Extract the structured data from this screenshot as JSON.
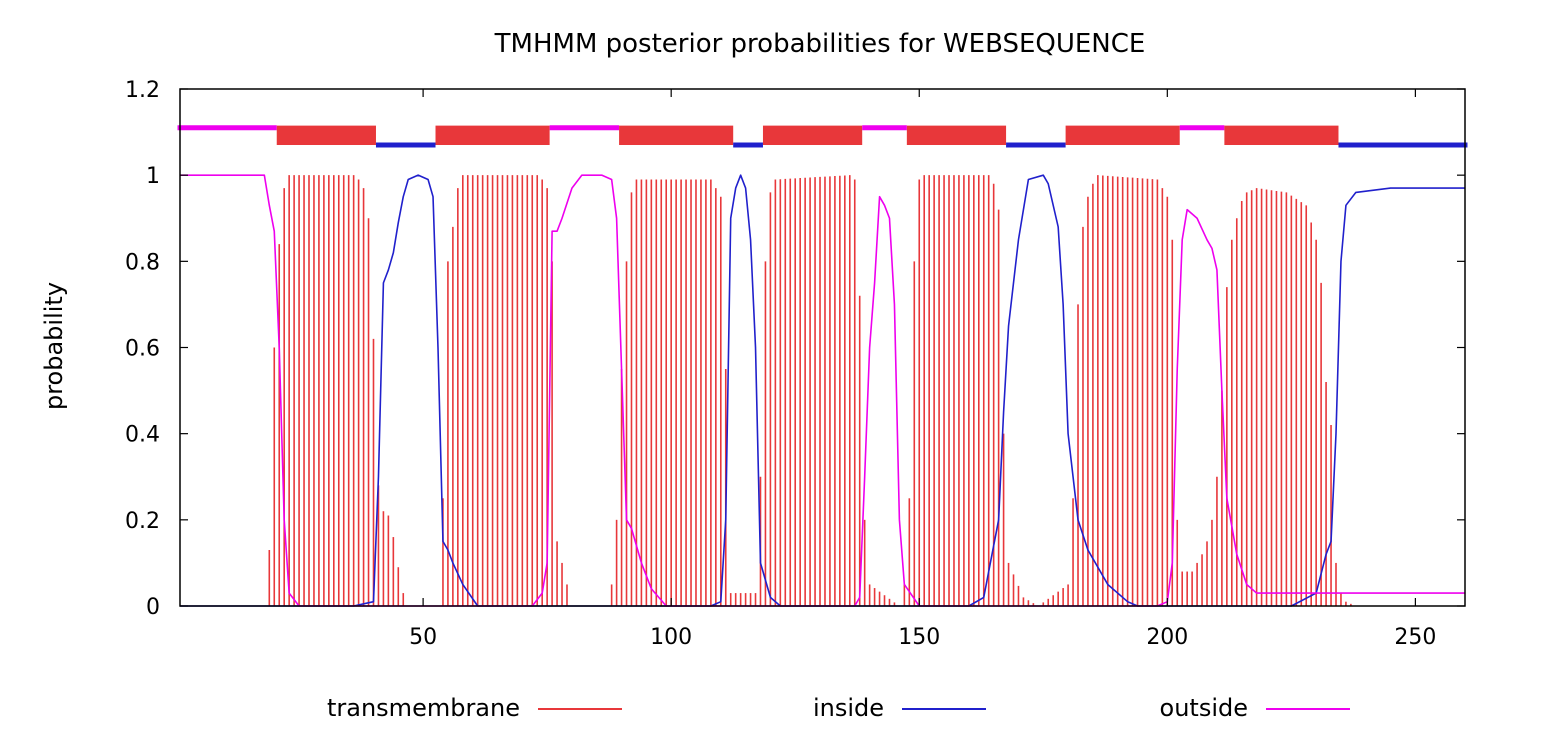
{
  "chart_data": {
    "type": "area",
    "title": "TMHMM posterior probabilities for WEBSEQUENCE",
    "xlabel": "",
    "ylabel": "probability",
    "xlim": [
      1,
      260
    ],
    "ylim": [
      0,
      1.2
    ],
    "x_ticks": [
      50,
      100,
      150,
      200,
      250
    ],
    "y_ticks": [
      0,
      0.2,
      0.4,
      0.6,
      0.8,
      1,
      1.2
    ],
    "y_tick_labels": [
      "0",
      "0.2",
      "0.4",
      "0.6",
      "0.8",
      "1",
      "1.2"
    ],
    "legend_position": "bottom",
    "grid": false,
    "series": [
      {
        "name": "transmembrane",
        "style": "impulses",
        "color": "#e8373a",
        "points": [
          [
            18,
            0
          ],
          [
            19,
            0.13
          ],
          [
            20,
            0.6
          ],
          [
            21,
            0.84
          ],
          [
            22,
            0.97
          ],
          [
            23,
            1
          ],
          [
            36,
            1
          ],
          [
            37,
            0.99
          ],
          [
            38,
            0.97
          ],
          [
            39,
            0.9
          ],
          [
            40,
            0.62
          ],
          [
            41,
            0.28
          ],
          [
            42,
            0.22
          ],
          [
            43,
            0.21
          ],
          [
            44,
            0.16
          ],
          [
            45,
            0.09
          ],
          [
            46,
            0.03
          ],
          [
            47,
            0
          ],
          [
            53,
            0
          ],
          [
            54,
            0.25
          ],
          [
            55,
            0.8
          ],
          [
            56,
            0.88
          ],
          [
            57,
            0.97
          ],
          [
            58,
            1
          ],
          [
            73,
            1
          ],
          [
            74,
            0.99
          ],
          [
            75,
            0.97
          ],
          [
            76,
            0.8
          ],
          [
            77,
            0.15
          ],
          [
            78,
            0.1
          ],
          [
            79,
            0.05
          ],
          [
            80,
            0
          ],
          [
            87,
            0
          ],
          [
            88,
            0.05
          ],
          [
            89,
            0.2
          ],
          [
            90,
            0.55
          ],
          [
            91,
            0.8
          ],
          [
            92,
            0.96
          ],
          [
            93,
            0.99
          ],
          [
            108,
            0.99
          ],
          [
            109,
            0.97
          ],
          [
            110,
            0.95
          ],
          [
            111,
            0.55
          ],
          [
            112,
            0.03
          ],
          [
            117,
            0.03
          ],
          [
            118,
            0.3
          ],
          [
            119,
            0.8
          ],
          [
            120,
            0.96
          ],
          [
            121,
            0.99
          ],
          [
            136,
            1
          ],
          [
            137,
            0.99
          ],
          [
            138,
            0.72
          ],
          [
            139,
            0.2
          ],
          [
            140,
            0.05
          ],
          [
            146,
            0
          ],
          [
            147,
            0.05
          ],
          [
            148,
            0.25
          ],
          [
            149,
            0.8
          ],
          [
            150,
            0.99
          ],
          [
            151,
            1
          ],
          [
            164,
            1
          ],
          [
            165,
            0.98
          ],
          [
            166,
            0.92
          ],
          [
            167,
            0.4
          ],
          [
            168,
            0.1
          ],
          [
            171,
            0.02
          ],
          [
            174,
            0
          ],
          [
            180,
            0.05
          ],
          [
            181,
            0.25
          ],
          [
            182,
            0.7
          ],
          [
            183,
            0.88
          ],
          [
            184,
            0.95
          ],
          [
            185,
            0.98
          ],
          [
            186,
            1
          ],
          [
            198,
            0.99
          ],
          [
            199,
            0.97
          ],
          [
            200,
            0.95
          ],
          [
            201,
            0.85
          ],
          [
            202,
            0.2
          ],
          [
            203,
            0.08
          ],
          [
            205,
            0.08
          ],
          [
            206,
            0.1
          ],
          [
            207,
            0.12
          ],
          [
            208,
            0.15
          ],
          [
            209,
            0.2
          ],
          [
            210,
            0.3
          ],
          [
            211,
            0.5
          ],
          [
            212,
            0.74
          ],
          [
            213,
            0.85
          ],
          [
            214,
            0.9
          ],
          [
            215,
            0.94
          ],
          [
            216,
            0.96
          ],
          [
            218,
            0.97
          ],
          [
            224,
            0.96
          ],
          [
            228,
            0.93
          ],
          [
            230,
            0.85
          ],
          [
            231,
            0.75
          ],
          [
            232,
            0.52
          ],
          [
            233,
            0.42
          ],
          [
            234,
            0.1
          ],
          [
            235,
            0.03
          ],
          [
            236,
            0.01
          ],
          [
            238,
            0
          ]
        ]
      },
      {
        "name": "inside",
        "style": "line",
        "color": "#2020cc",
        "points": [
          [
            1,
            0
          ],
          [
            36,
            0
          ],
          [
            40,
            0.01
          ],
          [
            41,
            0.3
          ],
          [
            42,
            0.75
          ],
          [
            43,
            0.78
          ],
          [
            44,
            0.82
          ],
          [
            45,
            0.89
          ],
          [
            46,
            0.95
          ],
          [
            47,
            0.99
          ],
          [
            49,
            1
          ],
          [
            51,
            0.99
          ],
          [
            52,
            0.95
          ],
          [
            53,
            0.6
          ],
          [
            54,
            0.15
          ],
          [
            55,
            0.13
          ],
          [
            56,
            0.1
          ],
          [
            58,
            0.05
          ],
          [
            61,
            0
          ],
          [
            103,
            0
          ],
          [
            108,
            0
          ],
          [
            110,
            0.01
          ],
          [
            111,
            0.2
          ],
          [
            112,
            0.9
          ],
          [
            113,
            0.97
          ],
          [
            114,
            1
          ],
          [
            115,
            0.97
          ],
          [
            116,
            0.85
          ],
          [
            117,
            0.6
          ],
          [
            118,
            0.1
          ],
          [
            120,
            0.02
          ],
          [
            122,
            0
          ],
          [
            160,
            0
          ],
          [
            163,
            0.02
          ],
          [
            166,
            0.2
          ],
          [
            167,
            0.45
          ],
          [
            168,
            0.65
          ],
          [
            170,
            0.85
          ],
          [
            172,
            0.99
          ],
          [
            175,
            1
          ],
          [
            176,
            0.98
          ],
          [
            178,
            0.88
          ],
          [
            179,
            0.7
          ],
          [
            180,
            0.4
          ],
          [
            182,
            0.2
          ],
          [
            184,
            0.13
          ],
          [
            188,
            0.05
          ],
          [
            192,
            0.01
          ],
          [
            194,
            0
          ],
          [
            220,
            0
          ],
          [
            225,
            0
          ],
          [
            230,
            0.03
          ],
          [
            232,
            0.12
          ],
          [
            233,
            0.15
          ],
          [
            234,
            0.4
          ],
          [
            235,
            0.8
          ],
          [
            236,
            0.93
          ],
          [
            238,
            0.96
          ],
          [
            245,
            0.97
          ],
          [
            260,
            0.97
          ]
        ]
      },
      {
        "name": "outside",
        "style": "line",
        "color": "#ee00ee",
        "points": [
          [
            1,
            1
          ],
          [
            18,
            1
          ],
          [
            19,
            0.93
          ],
          [
            20,
            0.87
          ],
          [
            21,
            0.6
          ],
          [
            22,
            0.2
          ],
          [
            23,
            0.03
          ],
          [
            25,
            0
          ],
          [
            72,
            0
          ],
          [
            74,
            0.03
          ],
          [
            75,
            0.1
          ],
          [
            76,
            0.87
          ],
          [
            77,
            0.87
          ],
          [
            78,
            0.9
          ],
          [
            80,
            0.97
          ],
          [
            82,
            1
          ],
          [
            86,
            1
          ],
          [
            88,
            0.99
          ],
          [
            89,
            0.9
          ],
          [
            90,
            0.55
          ],
          [
            91,
            0.2
          ],
          [
            92,
            0.18
          ],
          [
            94,
            0.1
          ],
          [
            96,
            0.04
          ],
          [
            99,
            0
          ],
          [
            137,
            0
          ],
          [
            138,
            0.02
          ],
          [
            139,
            0.3
          ],
          [
            140,
            0.6
          ],
          [
            141,
            0.75
          ],
          [
            142,
            0.95
          ],
          [
            143,
            0.93
          ],
          [
            144,
            0.9
          ],
          [
            145,
            0.7
          ],
          [
            146,
            0.2
          ],
          [
            147,
            0.05
          ],
          [
            150,
            0
          ],
          [
            198,
            0
          ],
          [
            200,
            0.01
          ],
          [
            201,
            0.1
          ],
          [
            202,
            0.55
          ],
          [
            203,
            0.85
          ],
          [
            204,
            0.92
          ],
          [
            206,
            0.9
          ],
          [
            208,
            0.85
          ],
          [
            209,
            0.83
          ],
          [
            210,
            0.78
          ],
          [
            211,
            0.5
          ],
          [
            212,
            0.25
          ],
          [
            214,
            0.12
          ],
          [
            216,
            0.05
          ],
          [
            218,
            0.03
          ],
          [
            260,
            0.03
          ]
        ]
      }
    ],
    "topology_bars": [
      {
        "region": "outside",
        "start": 1,
        "end": 20
      },
      {
        "region": "transmembrane",
        "start": 21,
        "end": 40
      },
      {
        "region": "inside",
        "start": 41,
        "end": 52
      },
      {
        "region": "transmembrane",
        "start": 53,
        "end": 75
      },
      {
        "region": "outside",
        "start": 76,
        "end": 89
      },
      {
        "region": "transmembrane",
        "start": 90,
        "end": 112
      },
      {
        "region": "inside",
        "start": 113,
        "end": 118
      },
      {
        "region": "transmembrane",
        "start": 119,
        "end": 138
      },
      {
        "region": "outside",
        "start": 139,
        "end": 147
      },
      {
        "region": "transmembrane",
        "start": 148,
        "end": 167
      },
      {
        "region": "inside",
        "start": 168,
        "end": 179
      },
      {
        "region": "transmembrane",
        "start": 180,
        "end": 202
      },
      {
        "region": "outside",
        "start": 203,
        "end": 211
      },
      {
        "region": "transmembrane",
        "start": 212,
        "end": 234
      },
      {
        "region": "inside",
        "start": 235,
        "end": 260
      }
    ]
  }
}
